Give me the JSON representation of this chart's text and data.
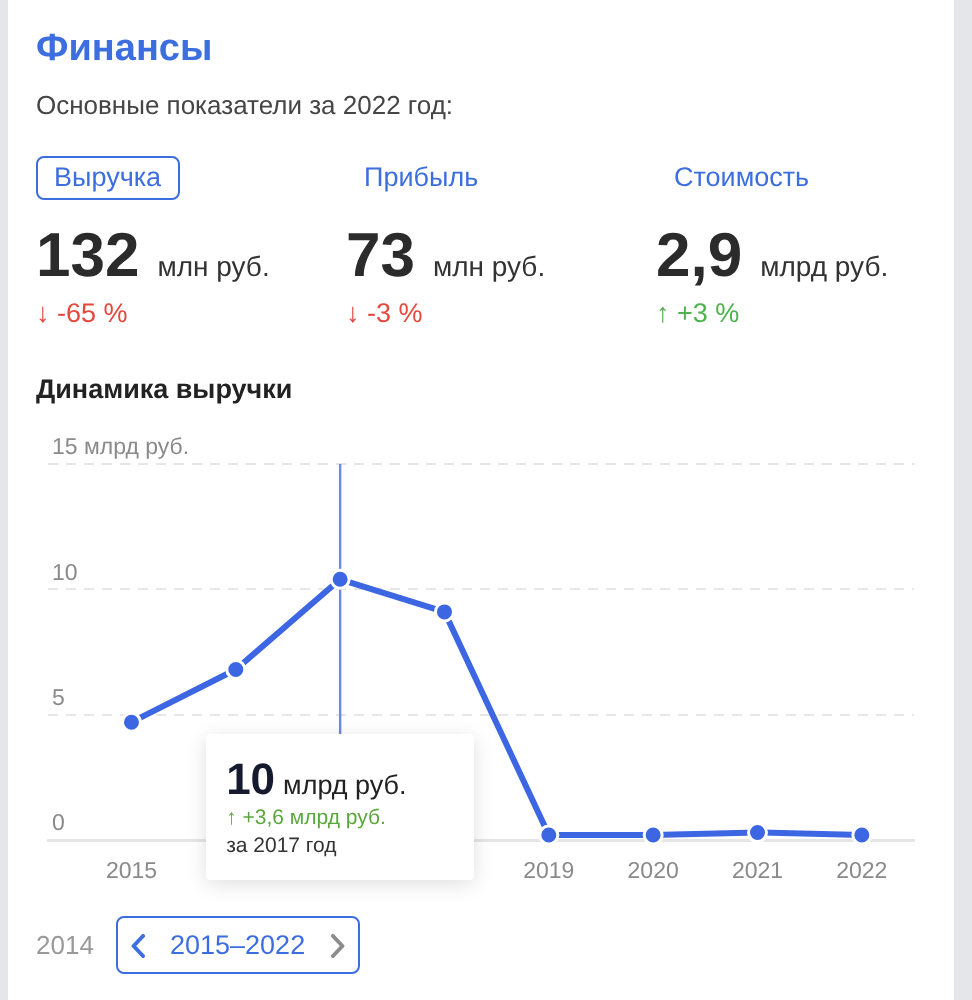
{
  "chart_data": [
    {
      "type": "other",
      "title": "Финансы",
      "subtitle": "Основные показатели за 2022 год:",
      "categories": [
        "Выручка",
        "Прибыль",
        "Стоимость"
      ],
      "annotations": [
        "132",
        "млн руб.",
        "↓ -65 %",
        "73",
        "млн руб.",
        "↓ -3 %",
        "2,9",
        "млрд руб.",
        "↑ +3 %"
      ]
    },
    {
      "type": "line",
      "title": "Динамика выручки",
      "x": [
        2015,
        2016,
        2017,
        2018,
        2019,
        2020,
        2021,
        2022
      ],
      "series": [
        {
          "color": "#3d66e3",
          "values": [
            4.7,
            6.8,
            10.4,
            9.1,
            0.2,
            0.2,
            0.3,
            0.2
          ]
        }
      ],
      "xlim": [
        2014.2,
        2022.5
      ],
      "xticks": [
        2015,
        2019,
        2020,
        2021,
        2022
      ],
      "ylim": [
        0,
        15
      ],
      "yticks": [
        0,
        5,
        10,
        {
          "value": 15,
          "label": "15 млрд руб."
        }
      ],
      "grid": "y",
      "marker": "circle",
      "line_style": "solid",
      "ref_lines": [
        {
          "axis": "x",
          "value": 2017,
          "color": "#6f8ad8"
        }
      ],
      "annotations": [
        "10 млрд руб.",
        "↑ +3,6 млрд руб.",
        "за 2017 год",
        "2014",
        "2015–2022"
      ]
    }
  ]
}
